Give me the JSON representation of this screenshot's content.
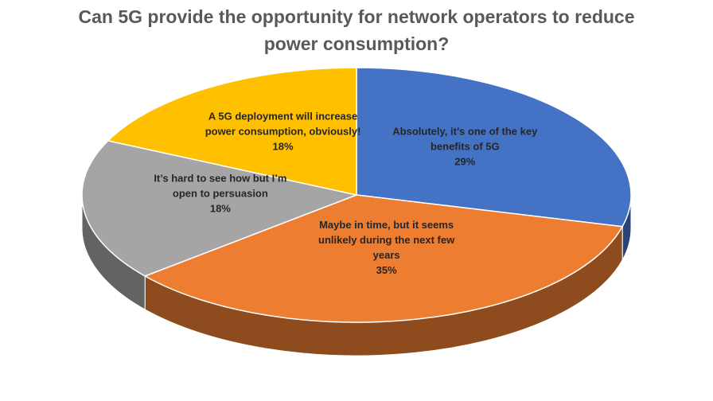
{
  "chart_data": {
    "type": "pie",
    "title": "Can 5G provide the opportunity for network operators to reduce power consumption?",
    "categories": [
      "Absolutely, it’s one of the key benefits of 5G",
      "Maybe in time, but it seems unlikely during the next few years",
      "It’s hard to see how but I’m open to persuasion",
      "A 5G deployment will increase power consumption, obviously!"
    ],
    "values": [
      29,
      35,
      18,
      18
    ],
    "value_labels": [
      "29%",
      "35%",
      "18%",
      "18%"
    ],
    "colors": [
      "#4472c4",
      "#ed7d31",
      "#a5a5a5",
      "#ffc000"
    ]
  }
}
